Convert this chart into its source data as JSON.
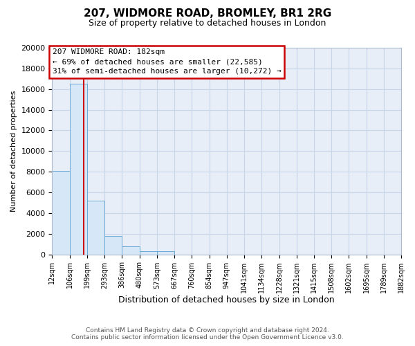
{
  "title": "207, WIDMORE ROAD, BROMLEY, BR1 2RG",
  "subtitle": "Size of property relative to detached houses in London",
  "xlabel": "Distribution of detached houses by size in London",
  "ylabel": "Number of detached properties",
  "bin_labels": [
    "12sqm",
    "106sqm",
    "199sqm",
    "293sqm",
    "386sqm",
    "480sqm",
    "573sqm",
    "667sqm",
    "760sqm",
    "854sqm",
    "947sqm",
    "1041sqm",
    "1134sqm",
    "1228sqm",
    "1321sqm",
    "1415sqm",
    "1508sqm",
    "1602sqm",
    "1695sqm",
    "1789sqm",
    "1882sqm"
  ],
  "bin_edges": [
    12,
    106,
    199,
    293,
    386,
    480,
    573,
    667,
    760,
    854,
    947,
    1041,
    1134,
    1228,
    1321,
    1415,
    1508,
    1602,
    1695,
    1789,
    1882
  ],
  "bar_heights": [
    8100,
    16500,
    5200,
    1800,
    750,
    300,
    280,
    0,
    0,
    0,
    0,
    0,
    0,
    0,
    0,
    0,
    0,
    0,
    0,
    0
  ],
  "bar_color": "#d6e8f7",
  "bar_edge_color": "#6aaad4",
  "property_size": 182,
  "marker_line_color": "#cc0000",
  "ylim": [
    0,
    20000
  ],
  "yticks": [
    0,
    2000,
    4000,
    6000,
    8000,
    10000,
    12000,
    14000,
    16000,
    18000,
    20000
  ],
  "annotation_line1": "207 WIDMORE ROAD: 182sqm",
  "annotation_line2": "← 69% of detached houses are smaller (22,585)",
  "annotation_line3": "31% of semi-detached houses are larger (10,272) →",
  "annotation_box_facecolor": "#ffffff",
  "annotation_box_edgecolor": "#cc0000",
  "grid_color": "#c8d4e8",
  "bg_color": "#e8eef8",
  "fig_bg_color": "#ffffff",
  "footer_line1": "Contains HM Land Registry data © Crown copyright and database right 2024.",
  "footer_line2": "Contains public sector information licensed under the Open Government Licence v3.0.",
  "title_fontsize": 11,
  "subtitle_fontsize": 9,
  "ylabel_fontsize": 8,
  "xlabel_fontsize": 9,
  "tick_fontsize": 8,
  "xtick_fontsize": 7,
  "footer_fontsize": 6.5,
  "annotation_fontsize": 8
}
